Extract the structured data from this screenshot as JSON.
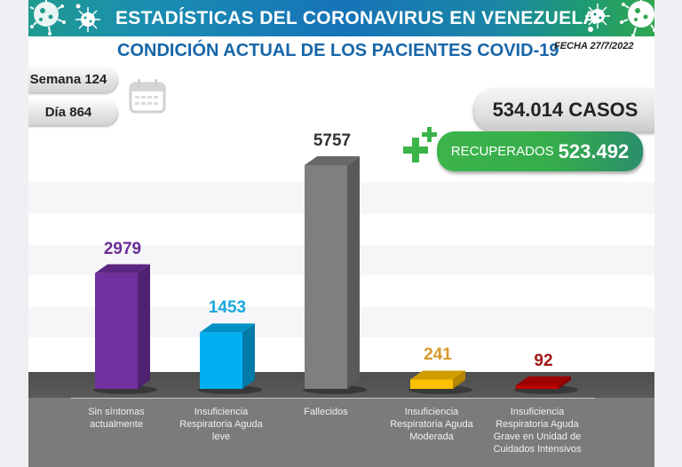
{
  "header": {
    "title": "ESTADÍSTICAS DEL CORONAVIRUS EN VENEZUELA",
    "subtitle": "CONDICIÓN ACTUAL DE LOS PACIENTES COVID-19",
    "fecha": "FECHA 27/7/2022"
  },
  "info": {
    "semana": "Semana 124",
    "dia": "Día 864",
    "casos": "534.014 CASOS",
    "recuperados_label": "RECUPERADOS",
    "recuperados_value": "523.492"
  },
  "icons": {
    "virus": "virus-icon",
    "calendar": "calendar-icon",
    "plus": "plus-icon"
  },
  "colors": {
    "header_blue": "#1673b8",
    "subtitle_blue": "#1766a8",
    "green": "#3cb44a"
  },
  "chart_data": {
    "type": "bar",
    "title": "CONDICIÓN ACTUAL DE LOS PACIENTES COVID-19",
    "xlabel": "",
    "ylabel": "",
    "categories": [
      "Sin síntomas actualmente",
      "Insuficiencia Respiratoria Aguda leve",
      "Fallecidos",
      "Insuficiencia Respiratoria Aguda Moderada",
      "Insuficiencia Respiratoria Aguda Grave en Unidad de Cuidados Intensivos"
    ],
    "category_lines": [
      [
        "Sin síntomas",
        "actualmente"
      ],
      [
        "Insuficiencia",
        "Respiratoria Aguda",
        "leve"
      ],
      [
        "Fallecidos"
      ],
      [
        "Insuficiencia",
        "Respiratoria Aguda",
        "Moderada"
      ],
      [
        "Insuficiencia",
        "Respiratoria Aguda",
        "Grave en Unidad de",
        "Cuidados Intensivos"
      ]
    ],
    "values": [
      2979,
      1453,
      5757,
      241,
      92
    ],
    "data_labels": [
      "2979",
      "1453",
      "5757",
      "241",
      "92"
    ],
    "bar_colors": [
      "#7030a0",
      "#00b0f0",
      "#7f7f7f",
      "#ffc000",
      "#c00000"
    ],
    "label_colors": [
      "#6a2d96",
      "#1aa7dd",
      "#333333",
      "#d89a2a",
      "#a01818"
    ],
    "ylim": [
      0,
      5757
    ],
    "grid": false,
    "legend": "none"
  }
}
